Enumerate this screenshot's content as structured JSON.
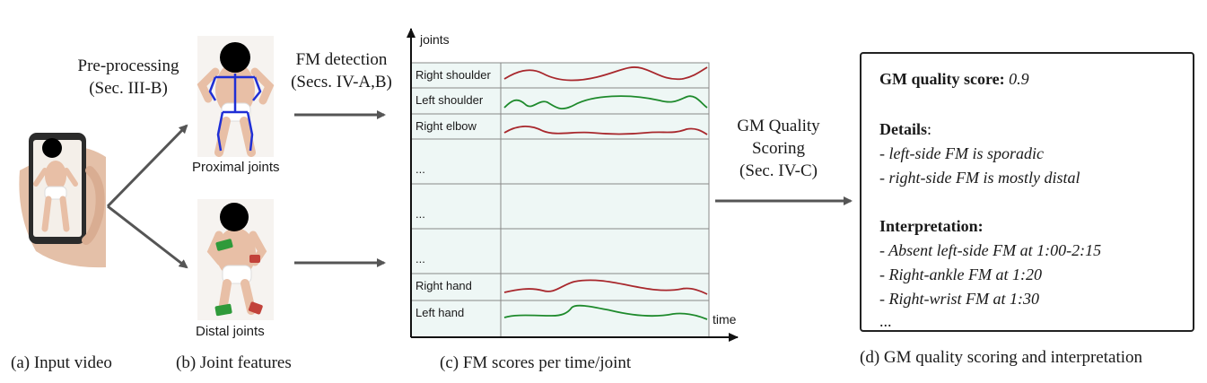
{
  "captions": {
    "a": "(a) Input video",
    "b": "(b) Joint features",
    "c": "(c)  FM  scores per time/joint",
    "d": "(d)  GM quality scoring and interpretation"
  },
  "preprocessing": {
    "line1": "Pre-processing",
    "line2": "(Sec. III-B)"
  },
  "fm_detection": {
    "line1": "FM detection",
    "line2": "(Secs. IV-A,B)"
  },
  "gm_scoring": {
    "line1": "GM Quality",
    "line2": "Scoring",
    "line3": "(Sec. IV-C)"
  },
  "joint_images": {
    "proximal": "Proximal joints",
    "distal": "Distal joints"
  },
  "chart": {
    "y_axis_label": "joints",
    "x_axis_label": "time",
    "rows": [
      "Right shoulder",
      "Left shoulder",
      "Right elbow",
      "...",
      "...",
      "...",
      "Right hand",
      "Left hand"
    ]
  },
  "result": {
    "score_label": "GM quality score:",
    "score_value": "0.9",
    "details_label": "Details",
    "details_colon": ":",
    "details": [
      "- left-side FM is sporadic",
      "- right-side FM is mostly distal"
    ],
    "interpretation_label": "Interpretation:",
    "interpretation": [
      "- Absent left-side FM at 1:00-2:15",
      "- Right-ankle FM at 1:20",
      "- Right-wrist FM at 1:30"
    ],
    "ellipsis": "..."
  },
  "colors": {
    "chart_bg": "#eef7f5",
    "red_curve": "#a8282d",
    "green_curve": "#1e8a2c",
    "skeleton": "#1f2fd6",
    "skin": "#e8bfa6",
    "diaper": "#f4f2ef"
  }
}
